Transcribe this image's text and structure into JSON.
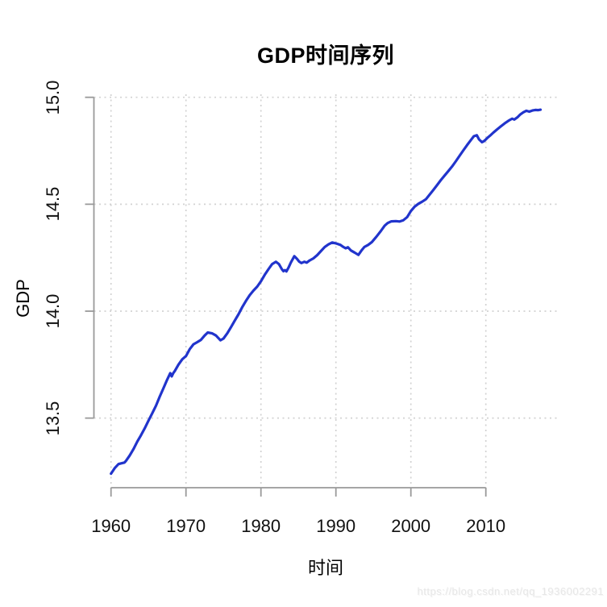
{
  "window": {
    "background_color": "#ffffff"
  },
  "watermark": "https://blog.csdn.net/qq_1936002291",
  "chart_data": {
    "type": "line",
    "title": "GDP时间序列",
    "xlabel": "时间",
    "ylabel": "GDP",
    "grid": true,
    "grid_style": "dotted",
    "grid_color": "#d2d2d2",
    "axis_color": "#9a9a9a",
    "tick_label_color": "#111111",
    "line_color": "#2134CC",
    "xlim": [
      1957.7,
      2019.5
    ],
    "ylim": [
      13.16,
      15.01
    ],
    "x_ticks": [
      {
        "label": "1960",
        "value": 1960
      },
      {
        "label": "1970",
        "value": 1970
      },
      {
        "label": "1980",
        "value": 1980
      },
      {
        "label": "1990",
        "value": 1990
      },
      {
        "label": "2000",
        "value": 2000
      },
      {
        "label": "2010",
        "value": 2010
      }
    ],
    "y_ticks": [
      {
        "label": "13.5",
        "value": 13.5
      },
      {
        "label": "14.0",
        "value": 14.0
      },
      {
        "label": "14.5",
        "value": 14.5
      },
      {
        "label": "15.0",
        "value": 15.0
      }
    ],
    "series": [
      {
        "name": "GDP",
        "x": [
          1960.0,
          1960.5,
          1961.0,
          1961.3,
          1961.8,
          1962.0,
          1962.5,
          1963.0,
          1963.5,
          1964.0,
          1964.5,
          1965.0,
          1965.5,
          1966.0,
          1966.5,
          1967.0,
          1967.5,
          1967.9,
          1968.1,
          1968.3,
          1968.5,
          1969.0,
          1969.5,
          1970.0,
          1970.5,
          1971.0,
          1971.5,
          1972.0,
          1972.5,
          1972.9,
          1973.5,
          1974.0,
          1974.6,
          1975.0,
          1975.5,
          1976.0,
          1976.5,
          1977.0,
          1977.5,
          1978.0,
          1978.5,
          1979.0,
          1979.5,
          1980.0,
          1980.5,
          1981.0,
          1981.5,
          1982.0,
          1982.4,
          1982.8,
          1983.0,
          1983.2,
          1983.4,
          1983.7,
          1984.0,
          1984.45,
          1984.8,
          1985.1,
          1985.4,
          1985.8,
          1986.1,
          1986.5,
          1987.0,
          1987.5,
          1988.0,
          1988.5,
          1989.0,
          1989.5,
          1990.0,
          1990.6,
          1991.0,
          1991.3,
          1991.6,
          1992.0,
          1992.5,
          1993.0,
          1993.4,
          1993.8,
          1994.3,
          1994.8,
          1995.2,
          1995.4,
          1996.0,
          1996.5,
          1996.9,
          1997.4,
          1998.0,
          1998.5,
          1999.0,
          1999.5,
          2000.0,
          2000.5,
          2001.0,
          2001.5,
          2002.0,
          2002.5,
          2003.0,
          2003.5,
          2004.0,
          2004.5,
          2005.0,
          2005.5,
          2006.0,
          2006.5,
          2007.0,
          2007.5,
          2008.0,
          2008.4,
          2008.8,
          2009.1,
          2009.5,
          2009.8,
          2010.2,
          2010.6,
          2011.0,
          2011.5,
          2012.0,
          2012.5,
          2013.0,
          2013.5,
          2013.8,
          2014.2,
          2014.6,
          2015.0,
          2015.4,
          2015.8,
          2016.2,
          2016.6,
          2017.0,
          2017.3
        ],
        "y": [
          13.24,
          13.266,
          13.285,
          13.288,
          13.292,
          13.3,
          13.325,
          13.355,
          13.39,
          13.42,
          13.452,
          13.488,
          13.522,
          13.558,
          13.6,
          13.64,
          13.68,
          13.71,
          13.695,
          13.71,
          13.72,
          13.75,
          13.775,
          13.79,
          13.822,
          13.845,
          13.855,
          13.866,
          13.886,
          13.9,
          13.896,
          13.886,
          13.864,
          13.872,
          13.896,
          13.925,
          13.955,
          13.985,
          14.018,
          14.048,
          14.075,
          14.096,
          14.115,
          14.14,
          14.17,
          14.196,
          14.22,
          14.231,
          14.22,
          14.196,
          14.187,
          14.192,
          14.186,
          14.205,
          14.228,
          14.257,
          14.245,
          14.232,
          14.225,
          14.231,
          14.227,
          14.237,
          14.247,
          14.262,
          14.281,
          14.3,
          14.312,
          14.321,
          14.317,
          14.31,
          14.3,
          14.294,
          14.299,
          14.284,
          14.274,
          14.263,
          14.283,
          14.3,
          14.31,
          14.323,
          14.34,
          14.348,
          14.375,
          14.4,
          14.412,
          14.42,
          14.421,
          14.419,
          14.425,
          14.44,
          14.468,
          14.489,
          14.502,
          14.512,
          14.523,
          14.545,
          14.567,
          14.59,
          14.613,
          14.634,
          14.655,
          14.677,
          14.701,
          14.727,
          14.752,
          14.777,
          14.8,
          14.818,
          14.823,
          14.803,
          14.79,
          14.796,
          14.81,
          14.822,
          14.835,
          14.85,
          14.864,
          14.878,
          14.89,
          14.9,
          14.896,
          14.906,
          14.92,
          14.93,
          14.937,
          14.933,
          14.938,
          14.941,
          14.94,
          14.942
        ]
      }
    ]
  }
}
